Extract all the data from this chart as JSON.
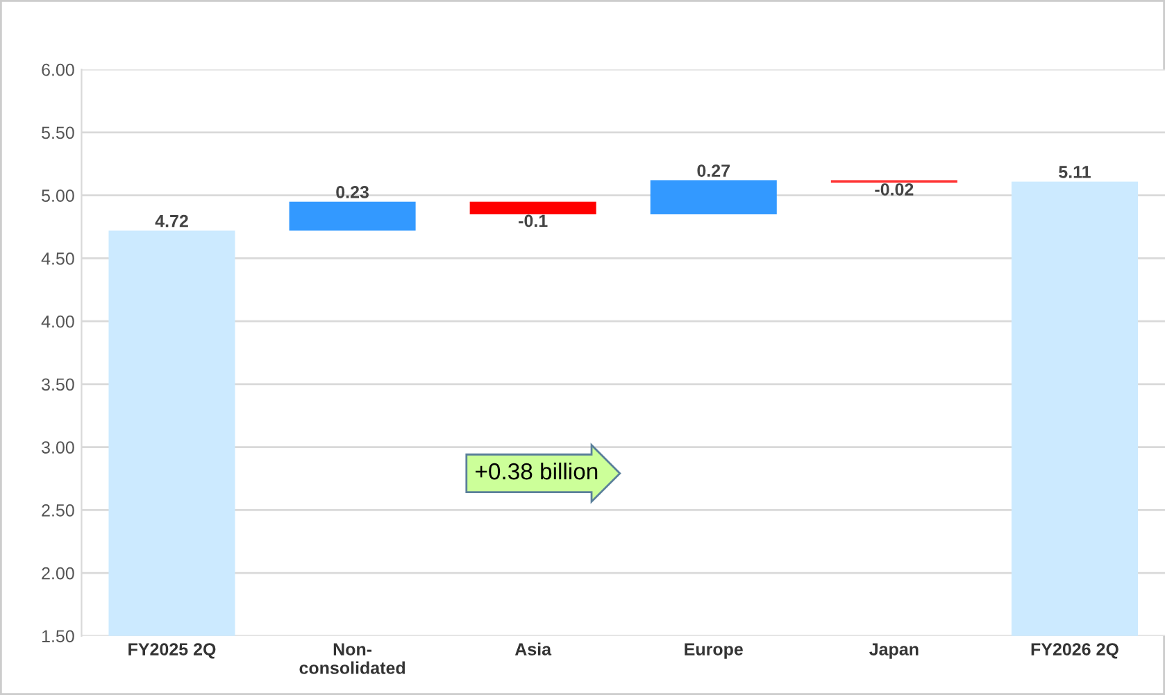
{
  "chart_data": {
    "type": "bar",
    "categories": [
      "FY2025 2Q",
      "Non-\nconsolidated",
      "Asia",
      "Europe",
      "Japan",
      "FY2026 2Q"
    ],
    "values": [
      4.72,
      0.23,
      -0.1,
      0.27,
      -0.02,
      5.11
    ],
    "base": [
      0,
      4.72,
      4.95,
      4.85,
      5.12,
      0
    ],
    "colors": [
      "#cceaff",
      "#3399ff",
      "#ff0000",
      "#3399ff",
      "#ff3333",
      "#cceaff"
    ],
    "data_labels": true,
    "ylim": [
      1.5,
      6.0
    ],
    "yticks": [
      {
        "value": 1.5,
        "label": "1.50"
      },
      {
        "value": 2.0,
        "label": "2.00"
      },
      {
        "value": 2.5,
        "label": "2.50"
      },
      {
        "value": 3.0,
        "label": "3.00"
      },
      {
        "value": 3.5,
        "label": "3.50"
      },
      {
        "value": 4.0,
        "label": "4.00"
      },
      {
        "value": 4.5,
        "label": "4.50"
      },
      {
        "value": 5.0,
        "label": "5.00"
      },
      {
        "value": 5.5,
        "label": "5.50"
      },
      {
        "value": 6.0,
        "label": "6.00"
      }
    ],
    "grid": "y",
    "annotations": [
      "+0.38 billion"
    ]
  }
}
